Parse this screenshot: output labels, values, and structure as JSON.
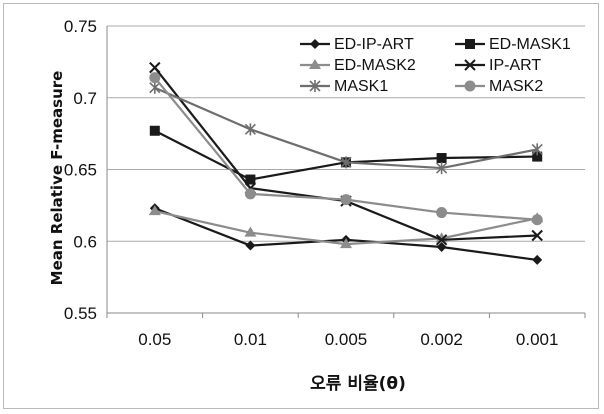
{
  "chart_data": {
    "type": "line",
    "categories": [
      "0.05",
      "0.01",
      "0.005",
      "0.002",
      "0.001"
    ],
    "ylabel": "Mean Relative F-measure",
    "xlabel": "오류 비율(θ)",
    "ylim": [
      0.55,
      0.75
    ],
    "yticks": [
      "0.55",
      "0.6",
      "0.65",
      "0.7",
      "0.75"
    ],
    "grid": "horizontal",
    "legend_position": "top-right",
    "series": [
      {
        "name": "ED-IP-ART",
        "color": "#1a1a1a",
        "marker": "diamond",
        "values": [
          0.623,
          0.597,
          0.601,
          0.596,
          0.587
        ]
      },
      {
        "name": "ED-MASK1",
        "color": "#1a1a1a",
        "marker": "square",
        "values": [
          0.677,
          0.643,
          0.655,
          0.658,
          0.659
        ]
      },
      {
        "name": "ED-MASK2",
        "color": "#8c8c8c",
        "marker": "triangle",
        "values": [
          0.621,
          0.606,
          0.598,
          0.602,
          0.616
        ]
      },
      {
        "name": "IP-ART",
        "color": "#1a1a1a",
        "marker": "x",
        "values": [
          0.721,
          0.637,
          0.628,
          0.601,
          0.604
        ]
      },
      {
        "name": "MASK1",
        "color": "#6e6e6e",
        "marker": "star",
        "values": [
          0.707,
          0.678,
          0.655,
          0.651,
          0.664
        ]
      },
      {
        "name": "MASK2",
        "color": "#8c8c8c",
        "marker": "circle",
        "values": [
          0.714,
          0.633,
          0.629,
          0.62,
          0.615
        ]
      }
    ]
  }
}
